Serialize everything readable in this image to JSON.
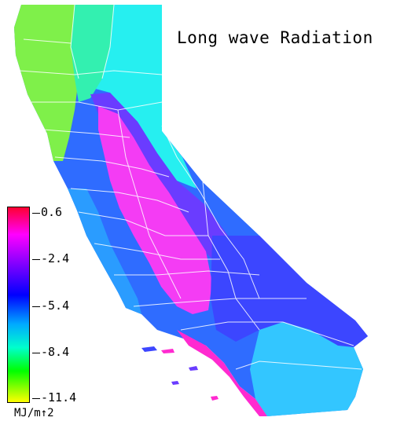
{
  "title": "Long wave Radiation",
  "legend": {
    "unit": "MJ/m↑2",
    "ticks": [
      "0.6",
      "-2.4",
      "-5.4",
      "-8.4",
      "-11.4"
    ],
    "max": 0.6,
    "min": -11.4,
    "colors": [
      "#ff0030",
      "#ff00ff",
      "#7a00ff",
      "#0000ff",
      "#00aaff",
      "#00ffcc",
      "#00ff00",
      "#ffff00"
    ]
  },
  "map": {
    "colors": {
      "north_coast": "#7ff04a",
      "north_interior": "#33f4b0",
      "northeast": "#22f2ee",
      "central_coast": "#2a8cff",
      "central_valley": "#f43cf4",
      "sierra": "#6f3cff",
      "desert": "#3d47ff",
      "south_coast": "#ff2ad0",
      "southeast": "#33c6ff",
      "boundaries": "#ffffff"
    }
  }
}
